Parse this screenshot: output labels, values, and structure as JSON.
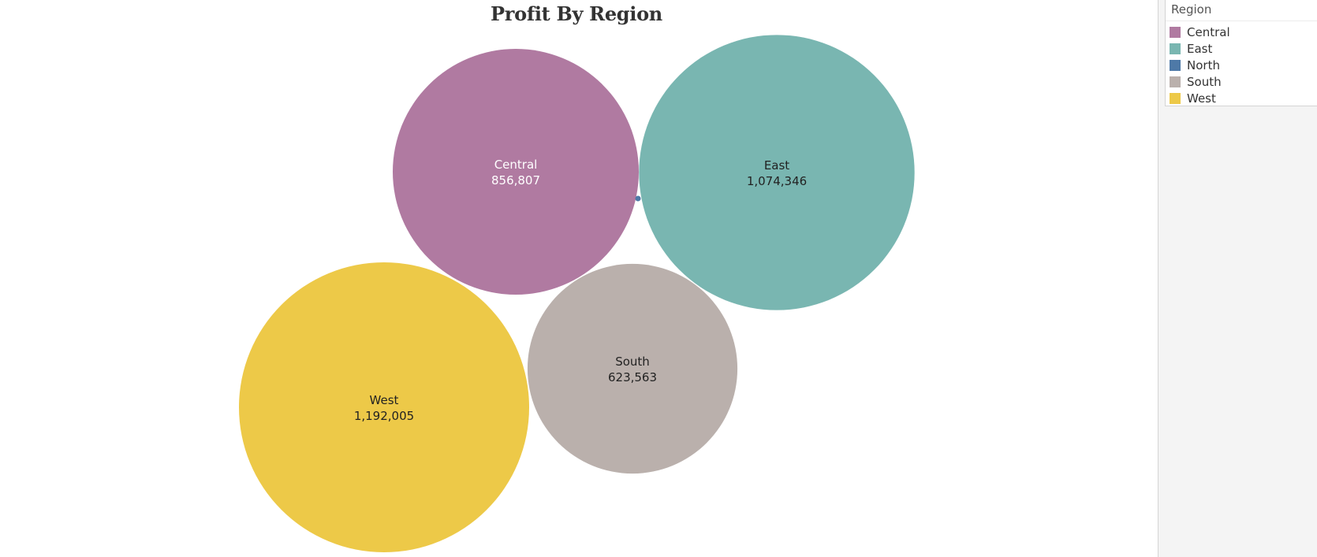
{
  "chart_data": {
    "type": "bubble",
    "title": "Profit By Region",
    "measure": "Profit",
    "legend": {
      "title": "Region",
      "placement": "top-right",
      "items": [
        {
          "label": "Central",
          "color": "#b07aa1"
        },
        {
          "label": "East",
          "color": "#79b6b1"
        },
        {
          "label": "North",
          "color": "#4e79a7"
        },
        {
          "label": "South",
          "color": "#bab0ac"
        },
        {
          "label": "West",
          "color": "#edc948"
        }
      ]
    },
    "bubbles": [
      {
        "region": "Central",
        "value": 856807,
        "value_label": "856,807",
        "color": "#b07aa1",
        "text_color": "#ffffff"
      },
      {
        "region": "East",
        "value": 1074346,
        "value_label": "1,074,346",
        "color": "#79b6b1",
        "text_color": "#222222"
      },
      {
        "region": "North",
        "value": null,
        "value_label": "",
        "color": "#4e79a7",
        "text_color": "#222222"
      },
      {
        "region": "South",
        "value": 623563,
        "value_label": "623,563",
        "color": "#bab0ac",
        "text_color": "#222222"
      },
      {
        "region": "West",
        "value": 1192005,
        "value_label": "1,192,005",
        "color": "#edc948",
        "text_color": "#222222"
      }
    ]
  }
}
